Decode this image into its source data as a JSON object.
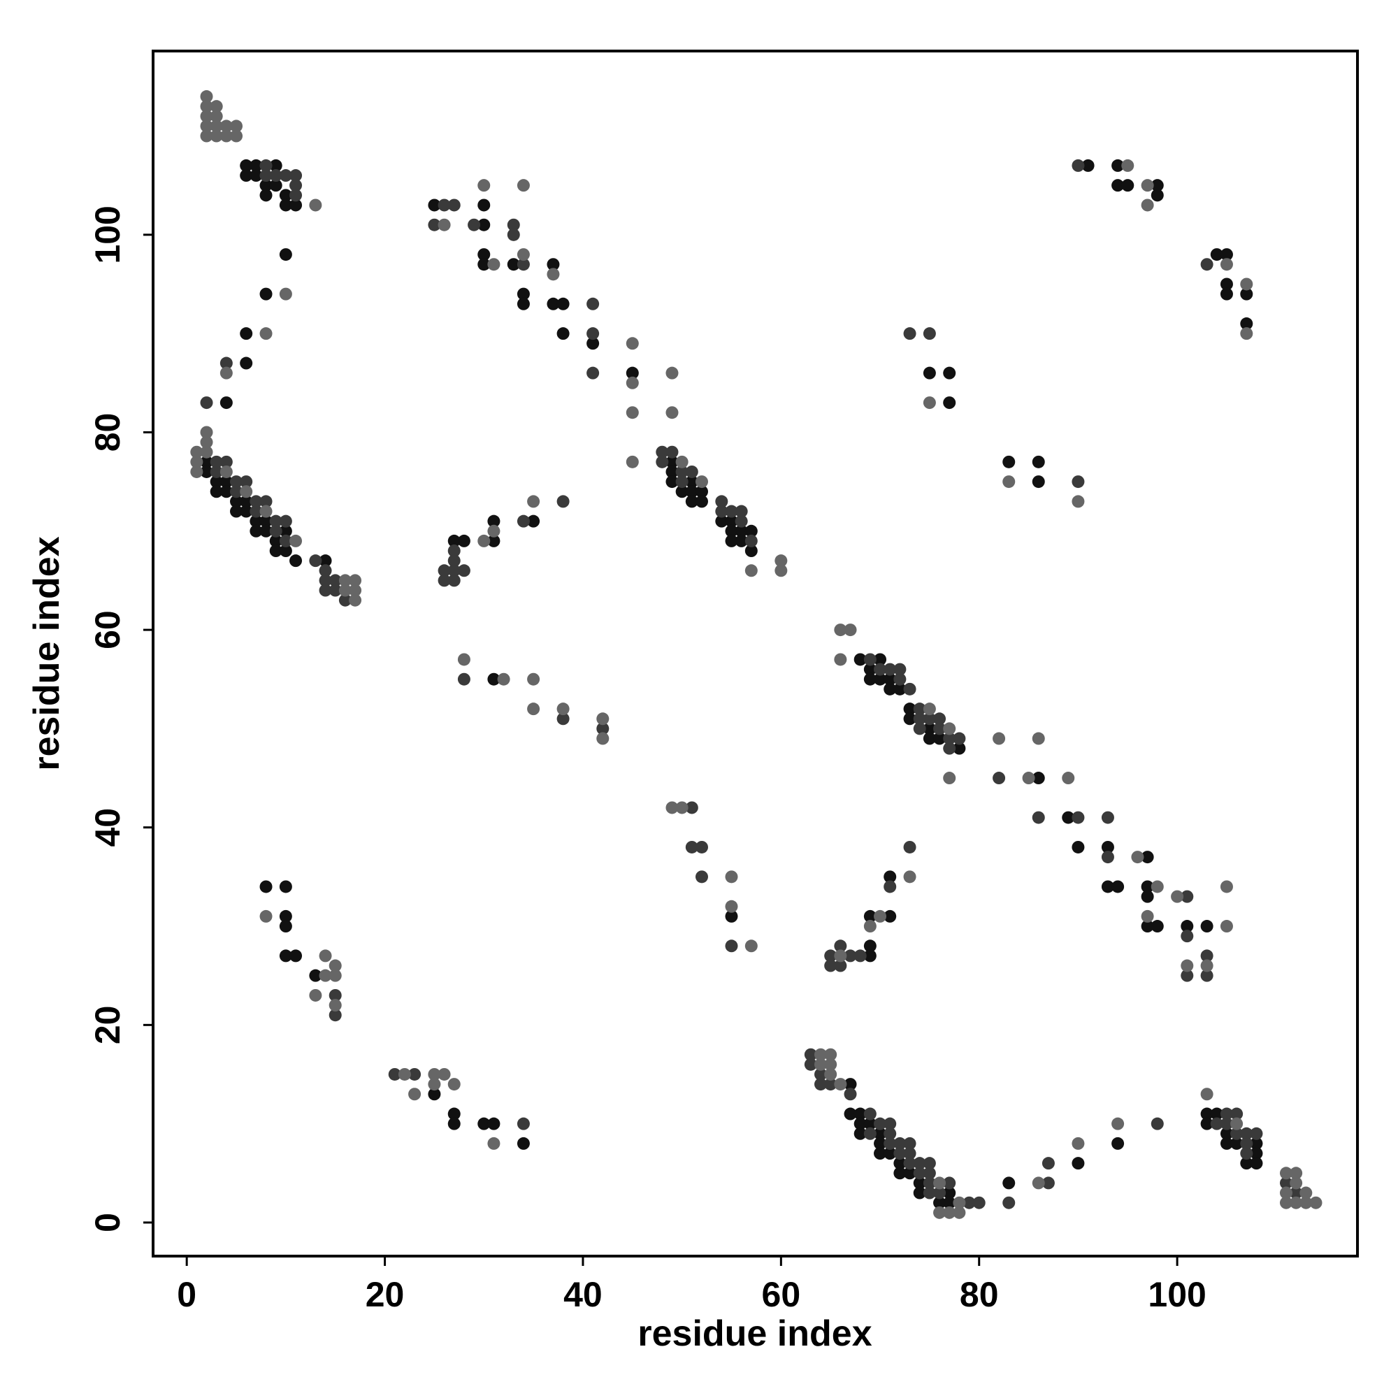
{
  "chart_data": {
    "type": "scatter",
    "x_label": "residue index",
    "y_label": "residue index",
    "xlim": [
      -3.4,
      118.2
    ],
    "ylim": [
      -3.4,
      118.6
    ],
    "xticks": [
      0,
      20,
      40,
      60,
      80,
      100
    ],
    "yticks": [
      0,
      20,
      40,
      60,
      80,
      100
    ],
    "grid": false,
    "series": [
      {
        "color": "#111111",
        "x": [
          6,
          7,
          9,
          6,
          7,
          8,
          9,
          10,
          10,
          11,
          8,
          10,
          8,
          6,
          6,
          4,
          2,
          2,
          3,
          3,
          4,
          4,
          5,
          5,
          6,
          6,
          7,
          7,
          8,
          8,
          9,
          9,
          10,
          10,
          11,
          14,
          25,
          30,
          30,
          30,
          30,
          33,
          34,
          34,
          37,
          37,
          38,
          38,
          41,
          45,
          49,
          49,
          49,
          50,
          51,
          51,
          51,
          52,
          52,
          54,
          55,
          55,
          55,
          56,
          56,
          57,
          57,
          27,
          28,
          31,
          31,
          35,
          31,
          55,
          91,
          94,
          94,
          95,
          98,
          98,
          104,
          105,
          105,
          105,
          107,
          107,
          75,
          77,
          77,
          83,
          86,
          86,
          68,
          69,
          69,
          70,
          70,
          71,
          71,
          72,
          73,
          73,
          75,
          75,
          76,
          78,
          86,
          89,
          90,
          93,
          93,
          94,
          97,
          97,
          97,
          97,
          98,
          101,
          103,
          8,
          10,
          10,
          10,
          10,
          11,
          13,
          25,
          27,
          27,
          30,
          31,
          34,
          69,
          69,
          69,
          71,
          71,
          67,
          67,
          68,
          68,
          69,
          68,
          70,
          70,
          70,
          71,
          72,
          72,
          73,
          74,
          74,
          77,
          76,
          77,
          83,
          90,
          94,
          103,
          104,
          103,
          105,
          105,
          106,
          108,
          108,
          107,
          108
        ],
        "values": [
          107,
          107,
          107,
          106,
          106,
          105,
          105,
          104,
          103,
          103,
          104,
          98,
          94,
          90,
          87,
          83,
          77,
          76,
          75,
          74,
          75,
          74,
          73,
          72,
          73,
          72,
          71,
          70,
          71,
          70,
          69,
          68,
          70,
          68,
          67,
          67,
          103,
          101,
          103,
          98,
          97,
          97,
          94,
          93,
          97,
          93,
          93,
          90,
          89,
          86,
          77,
          76,
          75,
          74,
          75,
          74,
          73,
          74,
          73,
          71,
          71,
          70,
          69,
          70,
          69,
          70,
          68,
          69,
          69,
          71,
          69,
          71,
          55,
          31,
          107,
          107,
          105,
          105,
          105,
          104,
          98,
          98,
          95,
          94,
          94,
          91,
          86,
          86,
          83,
          77,
          77,
          75,
          57,
          56,
          55,
          57,
          55,
          55,
          54,
          54,
          52,
          51,
          50,
          49,
          49,
          48,
          45,
          41,
          38,
          38,
          34,
          34,
          37,
          34,
          33,
          30,
          30,
          30,
          30,
          34,
          34,
          31,
          30,
          27,
          27,
          25,
          13,
          11,
          10,
          10,
          10,
          8,
          28,
          27,
          31,
          31,
          35,
          14,
          11,
          11,
          10,
          10,
          9,
          9,
          8,
          7,
          7,
          6,
          5,
          5,
          4,
          3,
          3,
          2,
          2,
          4,
          6,
          8,
          11,
          11,
          10,
          9,
          8,
          8,
          8,
          7,
          6,
          6
        ]
      },
      {
        "color": "#3a3a3a",
        "x": [
          8,
          8,
          9,
          10,
          11,
          11,
          11,
          4,
          2,
          3,
          3,
          4,
          5,
          5,
          6,
          7,
          7,
          8,
          9,
          9,
          10,
          10,
          13,
          14,
          14,
          14,
          15,
          15,
          16,
          26,
          27,
          25,
          29,
          33,
          33,
          34,
          41,
          41,
          41,
          48,
          48,
          49,
          50,
          50,
          51,
          54,
          54,
          55,
          56,
          56,
          57,
          26,
          26,
          27,
          27,
          27,
          27,
          28,
          34,
          38,
          28,
          38,
          42,
          51,
          51,
          52,
          52,
          55,
          90,
          103,
          73,
          75,
          90,
          69,
          70,
          71,
          72,
          72,
          73,
          74,
          74,
          74,
          75,
          76,
          76,
          77,
          77,
          78,
          82,
          86,
          90,
          93,
          93,
          101,
          101,
          101,
          103,
          103,
          15,
          15,
          21,
          23,
          34,
          65,
          65,
          66,
          66,
          67,
          68,
          71,
          73,
          63,
          63,
          64,
          64,
          65,
          67,
          69,
          70,
          71,
          69,
          71,
          71,
          72,
          73,
          72,
          73,
          73,
          74,
          75,
          74,
          75,
          75,
          77,
          75,
          76,
          79,
          80,
          83,
          87,
          87,
          98,
          105,
          106,
          104,
          105,
          106,
          107,
          108,
          107,
          107,
          111,
          112
        ],
        "values": [
          107,
          106,
          106,
          106,
          106,
          105,
          104,
          87,
          83,
          77,
          76,
          77,
          75,
          74,
          75,
          73,
          72,
          73,
          71,
          70,
          71,
          69,
          67,
          66,
          65,
          64,
          65,
          64,
          63,
          103,
          103,
          101,
          101,
          101,
          100,
          97,
          93,
          90,
          86,
          78,
          77,
          78,
          76,
          75,
          76,
          73,
          72,
          72,
          72,
          71,
          69,
          66,
          65,
          68,
          67,
          66,
          65,
          66,
          71,
          73,
          55,
          51,
          50,
          42,
          38,
          38,
          35,
          28,
          107,
          97,
          90,
          90,
          75,
          57,
          56,
          56,
          56,
          55,
          54,
          52,
          51,
          50,
          51,
          51,
          50,
          49,
          48,
          49,
          45,
          41,
          41,
          41,
          37,
          33,
          29,
          25,
          27,
          25,
          23,
          21,
          15,
          15,
          10,
          27,
          26,
          28,
          26,
          27,
          27,
          34,
          38,
          17,
          16,
          15,
          14,
          14,
          13,
          11,
          10,
          10,
          9,
          9,
          8,
          8,
          8,
          7,
          7,
          6,
          6,
          6,
          5,
          5,
          4,
          4,
          3,
          3,
          2,
          2,
          2,
          4,
          6,
          10,
          11,
          11,
          10,
          10,
          9,
          9,
          9,
          8,
          7,
          4,
          3
        ]
      },
      {
        "color": "#666666",
        "x": [
          2,
          2,
          3,
          2,
          3,
          2,
          3,
          4,
          5,
          2,
          3,
          4,
          5,
          13,
          10,
          8,
          4,
          1,
          1,
          1,
          2,
          2,
          2,
          4,
          6,
          8,
          11,
          16,
          16,
          17,
          17,
          17,
          26,
          30,
          31,
          34,
          34,
          37,
          45,
          45,
          45,
          45,
          49,
          49,
          50,
          52,
          57,
          60,
          60,
          30,
          31,
          35,
          28,
          32,
          35,
          35,
          38,
          42,
          42,
          49,
          50,
          55,
          55,
          57,
          95,
          97,
          97,
          105,
          107,
          107,
          75,
          83,
          90,
          66,
          67,
          66,
          75,
          77,
          77,
          82,
          85,
          86,
          89,
          96,
          98,
          97,
          100,
          105,
          105,
          101,
          103,
          8,
          14,
          14,
          15,
          15,
          15,
          13,
          22,
          23,
          25,
          26,
          25,
          27,
          31,
          66,
          69,
          70,
          73,
          64,
          65,
          64,
          65,
          65,
          66,
          76,
          78,
          76,
          77,
          78,
          86,
          90,
          94,
          103,
          106,
          111,
          112,
          112,
          111,
          113,
          111,
          112,
          113,
          114
        ],
        "values": [
          114,
          113,
          113,
          112,
          112,
          111,
          111,
          111,
          111,
          110,
          110,
          110,
          110,
          103,
          94,
          90,
          86,
          78,
          77,
          76,
          80,
          79,
          78,
          76,
          74,
          72,
          69,
          65,
          64,
          65,
          64,
          63,
          101,
          105,
          97,
          98,
          105,
          96,
          89,
          85,
          82,
          77,
          86,
          82,
          77,
          75,
          66,
          67,
          66,
          69,
          70,
          73,
          57,
          55,
          55,
          52,
          52,
          51,
          49,
          42,
          42,
          35,
          32,
          28,
          107,
          105,
          103,
          97,
          95,
          90,
          83,
          75,
          73,
          60,
          60,
          57,
          52,
          50,
          45,
          49,
          45,
          49,
          45,
          37,
          34,
          31,
          33,
          34,
          30,
          26,
          26,
          31,
          27,
          25,
          26,
          25,
          22,
          23,
          15,
          13,
          15,
          15,
          14,
          14,
          8,
          27,
          30,
          31,
          35,
          17,
          17,
          16,
          16,
          15,
          14,
          4,
          2,
          1,
          1,
          1,
          4,
          8,
          10,
          13,
          10,
          5,
          5,
          4,
          3,
          3,
          2,
          2,
          2,
          2
        ]
      }
    ]
  }
}
